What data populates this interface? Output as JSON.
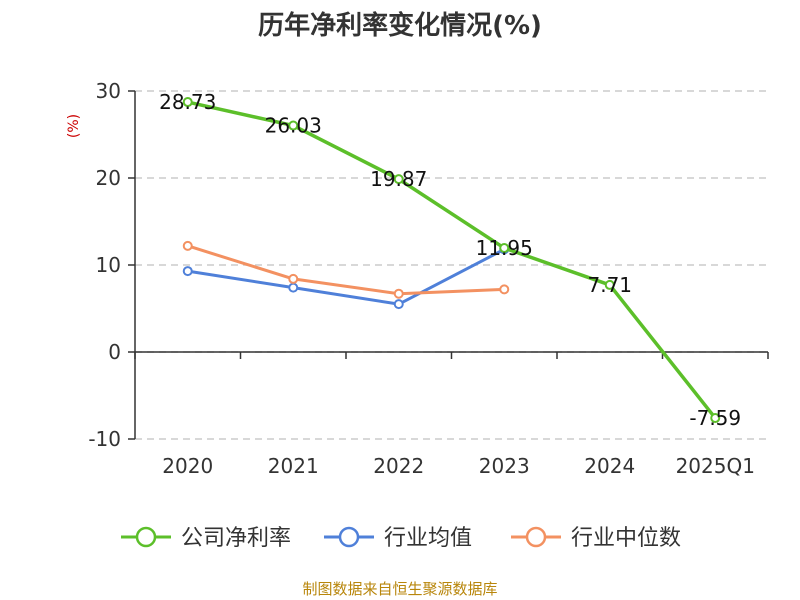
{
  "chart_data": {
    "type": "line",
    "title": "历年净利率变化情况(%)",
    "ylabel": "(%)",
    "xlabel": "",
    "categories": [
      "2020",
      "2021",
      "2022",
      "2023",
      "2024",
      "2025Q1"
    ],
    "ylim": [
      -10,
      30
    ],
    "yticks": [
      "30",
      "20",
      "10",
      "0",
      "-10"
    ],
    "grid": true,
    "legend_position": "bottom",
    "series": [
      {
        "name": "公司净利率",
        "color": "#5cbf2a",
        "values": [
          28.73,
          26.03,
          19.87,
          11.95,
          7.71,
          -7.59
        ],
        "labels": [
          "28.73",
          "26.03",
          "19.87",
          "11.95",
          "7.71",
          "-7.59"
        ]
      },
      {
        "name": "行业均值",
        "color": "#4f80d9",
        "values": [
          9.3,
          7.4,
          5.5,
          11.8,
          null,
          null
        ]
      },
      {
        "name": "行业中位数",
        "color": "#f39161",
        "values": [
          12.2,
          8.4,
          6.7,
          7.2,
          null,
          null
        ]
      }
    ]
  },
  "source_note": "制图数据来自恒生聚源数据库"
}
